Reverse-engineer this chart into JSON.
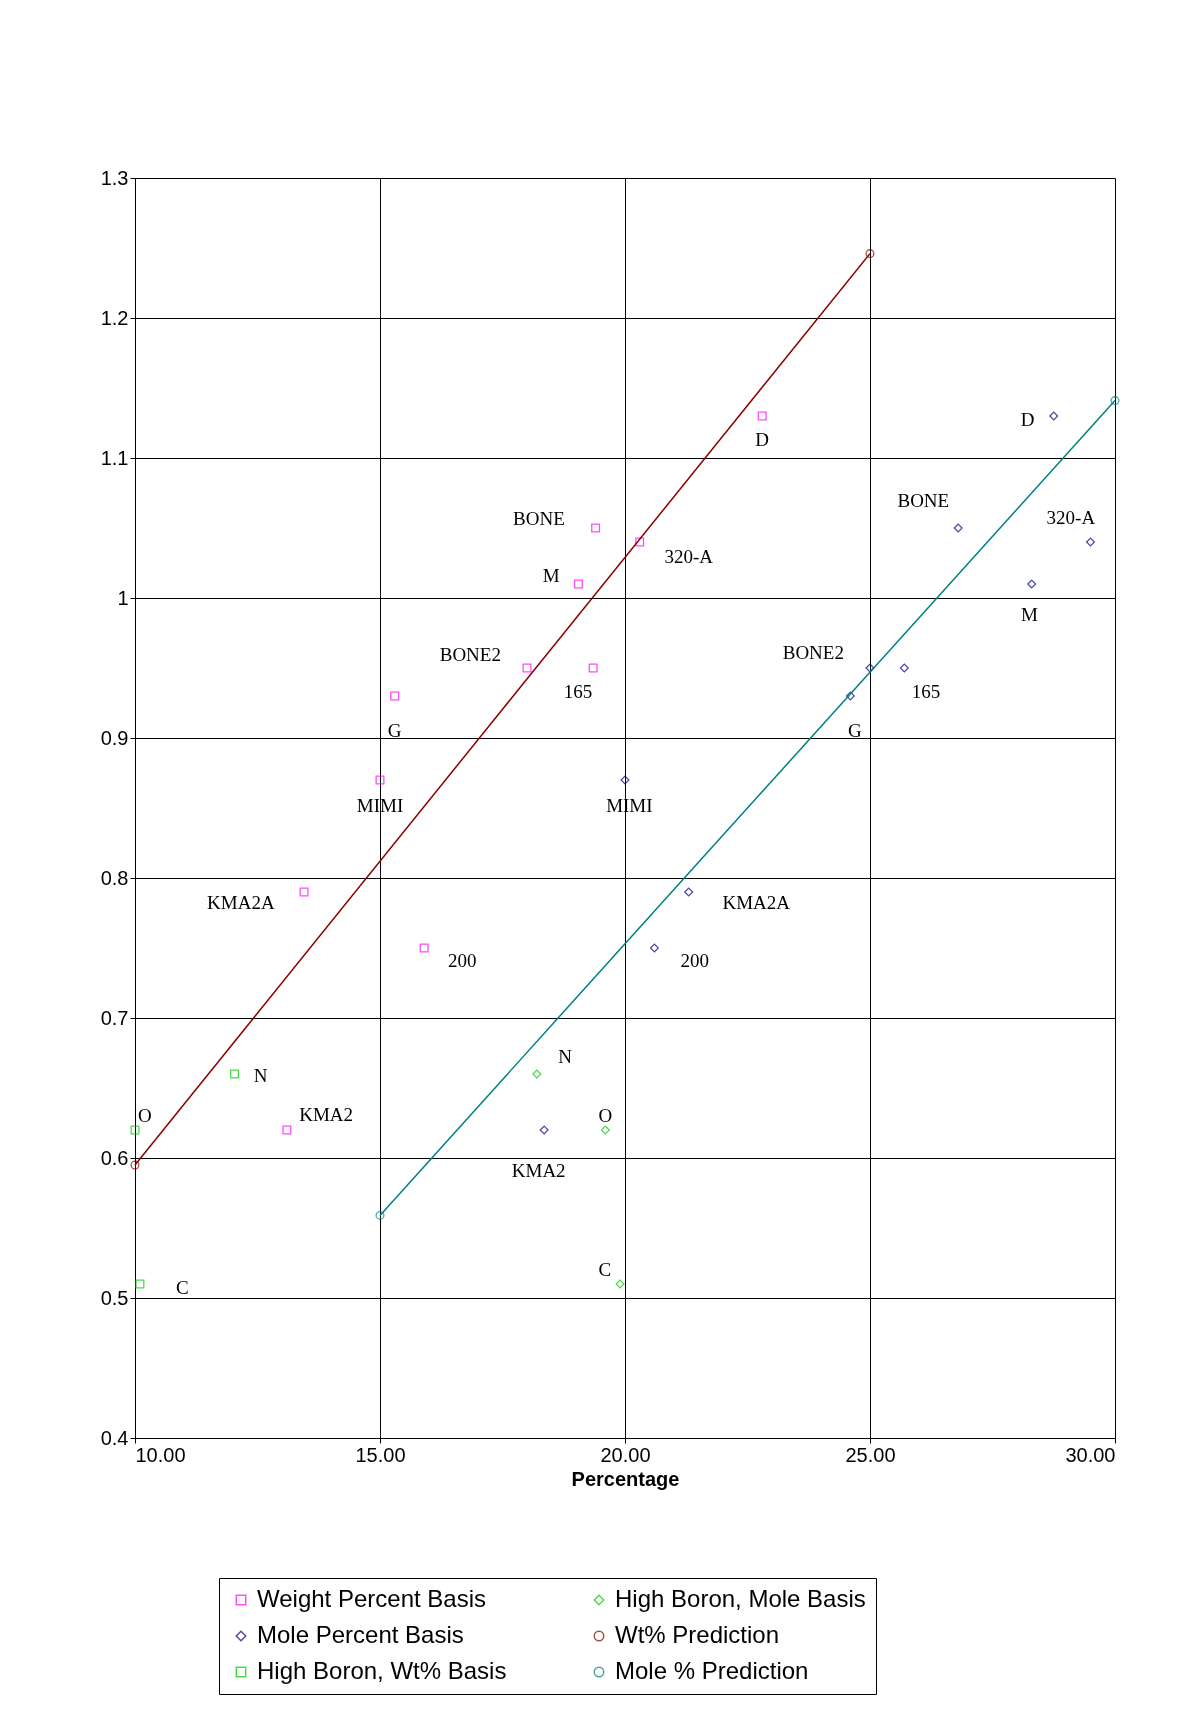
{
  "chart_data": {
    "type": "scatter",
    "xlabel": "Percentage",
    "xlim": [
      10,
      30
    ],
    "xticks": [
      {
        "value": 10,
        "label": "10.00"
      },
      {
        "value": 15,
        "label": "15.00"
      },
      {
        "value": 20,
        "label": "20.00"
      },
      {
        "value": 25,
        "label": "25.00"
      },
      {
        "value": 30,
        "label": "30.00"
      }
    ],
    "ylim": [
      0.4,
      1.3
    ],
    "yticks": [
      0.4,
      0.5,
      0.6,
      0.7,
      0.8,
      0.9,
      1,
      1.1,
      1.2,
      1.3
    ],
    "grid": true,
    "legend": "bottom",
    "series": [
      {
        "name": "Weight Percent Basis",
        "marker": "square",
        "color": "#ff00ff",
        "x": [
          22.8,
          19.4,
          20.3,
          19.05,
          18.0,
          19.35,
          15.3,
          15.0,
          13.45,
          15.9,
          13.1
        ],
        "values": [
          1.13,
          1.05,
          1.04,
          1.01,
          0.95,
          0.95,
          0.93,
          0.87,
          0.79,
          0.75,
          0.62
        ]
      },
      {
        "name": "Mole Percent Basis",
        "marker": "diamond",
        "color": "#000080",
        "x": [
          28.75,
          26.8,
          29.5,
          28.3,
          25.0,
          25.7,
          24.6,
          20.0,
          21.3,
          20.6,
          18.35
        ],
        "values": [
          1.13,
          1.05,
          1.04,
          1.01,
          0.95,
          0.95,
          0.93,
          0.87,
          0.79,
          0.75,
          0.62
        ]
      },
      {
        "name": "High Boron, Wt% Basis",
        "marker": "square",
        "color": "#00cc00",
        "x": [
          10.0,
          12.03,
          10.1
        ],
        "values": [
          0.62,
          0.66,
          0.51
        ]
      },
      {
        "name": "High Boron, Mole Basis",
        "marker": "diamond",
        "color": "#00cc00",
        "x": [
          18.2,
          19.6,
          19.9
        ],
        "values": [
          0.66,
          0.62,
          0.51
        ]
      },
      {
        "name": "Wt% Prediction",
        "type": "line",
        "marker": "circle",
        "color": "#8b0000",
        "x": [
          10,
          25
        ],
        "values": [
          0.595,
          1.246
        ]
      },
      {
        "name": "Mole % Prediction",
        "type": "line",
        "marker": "circle",
        "color": "#008080",
        "x": [
          15,
          30
        ],
        "values": [
          0.559,
          1.141
        ]
      }
    ],
    "annotations": [
      {
        "text": "D",
        "x": 22.8,
        "y": 1.13
      },
      {
        "text": "BONE",
        "x": 19.4,
        "y": 1.05
      },
      {
        "text": "320-A",
        "x": 20.3,
        "y": 1.04
      },
      {
        "text": "M",
        "x": 19.05,
        "y": 1.01
      },
      {
        "text": "BONE2",
        "x": 18.0,
        "y": 0.95
      },
      {
        "text": "165",
        "x": 19.35,
        "y": 0.95
      },
      {
        "text": "G",
        "x": 15.3,
        "y": 0.93
      },
      {
        "text": "MIMI",
        "x": 15.0,
        "y": 0.87
      },
      {
        "text": "KMA2A",
        "x": 13.45,
        "y": 0.79
      },
      {
        "text": "200",
        "x": 15.9,
        "y": 0.75
      },
      {
        "text": "KMA2",
        "x": 13.1,
        "y": 0.62
      },
      {
        "text": "O",
        "x": 10.0,
        "y": 0.62
      },
      {
        "text": "N",
        "x": 12.03,
        "y": 0.66
      },
      {
        "text": "C",
        "x": 10.1,
        "y": 0.51
      },
      {
        "text": "D",
        "x": 28.75,
        "y": 1.13
      },
      {
        "text": "BONE",
        "x": 26.8,
        "y": 1.05
      },
      {
        "text": "320-A",
        "x": 29.5,
        "y": 1.04
      },
      {
        "text": "M",
        "x": 28.3,
        "y": 1.01
      },
      {
        "text": "BONE2",
        "x": 25.0,
        "y": 0.95
      },
      {
        "text": "165",
        "x": 25.7,
        "y": 0.95
      },
      {
        "text": "G",
        "x": 24.6,
        "y": 0.93
      },
      {
        "text": "MIMI",
        "x": 20.0,
        "y": 0.87
      },
      {
        "text": "KMA2A",
        "x": 21.3,
        "y": 0.79
      },
      {
        "text": "200",
        "x": 20.6,
        "y": 0.75
      },
      {
        "text": "KMA2",
        "x": 18.35,
        "y": 0.62
      },
      {
        "text": "N",
        "x": 18.2,
        "y": 0.66
      },
      {
        "text": "O",
        "x": 19.6,
        "y": 0.62
      },
      {
        "text": "C",
        "x": 19.9,
        "y": 0.51
      }
    ]
  }
}
